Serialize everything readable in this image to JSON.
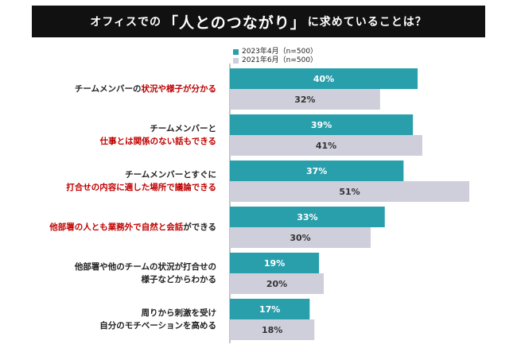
{
  "title": {
    "before": "オフィスでの",
    "highlight": "「人とのつながり」",
    "after": "に求めていることは？"
  },
  "legend": [
    {
      "label": "2023年4月（n=500）",
      "color": "#2a9fac"
    },
    {
      "label": "2021年6月（n=500）",
      "color": "#cfcfdc"
    }
  ],
  "chart_data": {
    "type": "bar",
    "orientation": "horizontal",
    "categories": [
      "チームメンバーの状況や様子が分かる",
      "チームメンバーと仕事とは関係のない話もできる",
      "チームメンバーとすぐに打合せの内容に適した場所で議論できる",
      "他部署の人とも業務外で自然と会話ができる",
      "他部署や他のチームの状況が打合せの様子などからわかる",
      "周りから刺激を受け自分のモチベーションを高める"
    ],
    "series": [
      {
        "name": "2023年4月（n=500）",
        "values": [
          40,
          39,
          37,
          33,
          19,
          17
        ],
        "labels": [
          "40%",
          "39%",
          "37%",
          "33%",
          "19%",
          "17%"
        ],
        "color": "#2a9fac"
      },
      {
        "name": "2021年6月（n=500）",
        "values": [
          32,
          41,
          51,
          30,
          20,
          18
        ],
        "labels": [
          "32%",
          "41%",
          "51%",
          "30%",
          "20%",
          "18%"
        ],
        "color": "#cfcfdc"
      }
    ],
    "category_labels": [
      [
        [
          {
            "text": "チームメンバーの",
            "red": false
          },
          {
            "text": "状況や様子が分かる",
            "red": true
          }
        ]
      ],
      [
        [
          {
            "text": "チームメンバーと",
            "red": false
          }
        ],
        [
          {
            "text": "仕事とは関係のない話もできる",
            "red": true
          }
        ]
      ],
      [
        [
          {
            "text": "チームメンバーとすぐに",
            "red": false
          }
        ],
        [
          {
            "text": "打合せの内容に適した場所で議論できる",
            "red": true
          }
        ]
      ],
      [
        [
          {
            "text": "他部署の人とも業務外で自然と会話",
            "red": true
          },
          {
            "text": "ができる",
            "red": false
          }
        ]
      ],
      [
        [
          {
            "text": "他部署や他のチームの状況が打合せの",
            "red": false
          }
        ],
        [
          {
            "text": "様子などからわかる",
            "red": false
          }
        ]
      ],
      [
        [
          {
            "text": "周りから刺激を受け",
            "red": false
          }
        ],
        [
          {
            "text": "自分のモチベーションを高める",
            "red": false
          }
        ]
      ]
    ],
    "xlim": [
      0,
      51
    ],
    "grid": false,
    "legend_position": "top"
  }
}
